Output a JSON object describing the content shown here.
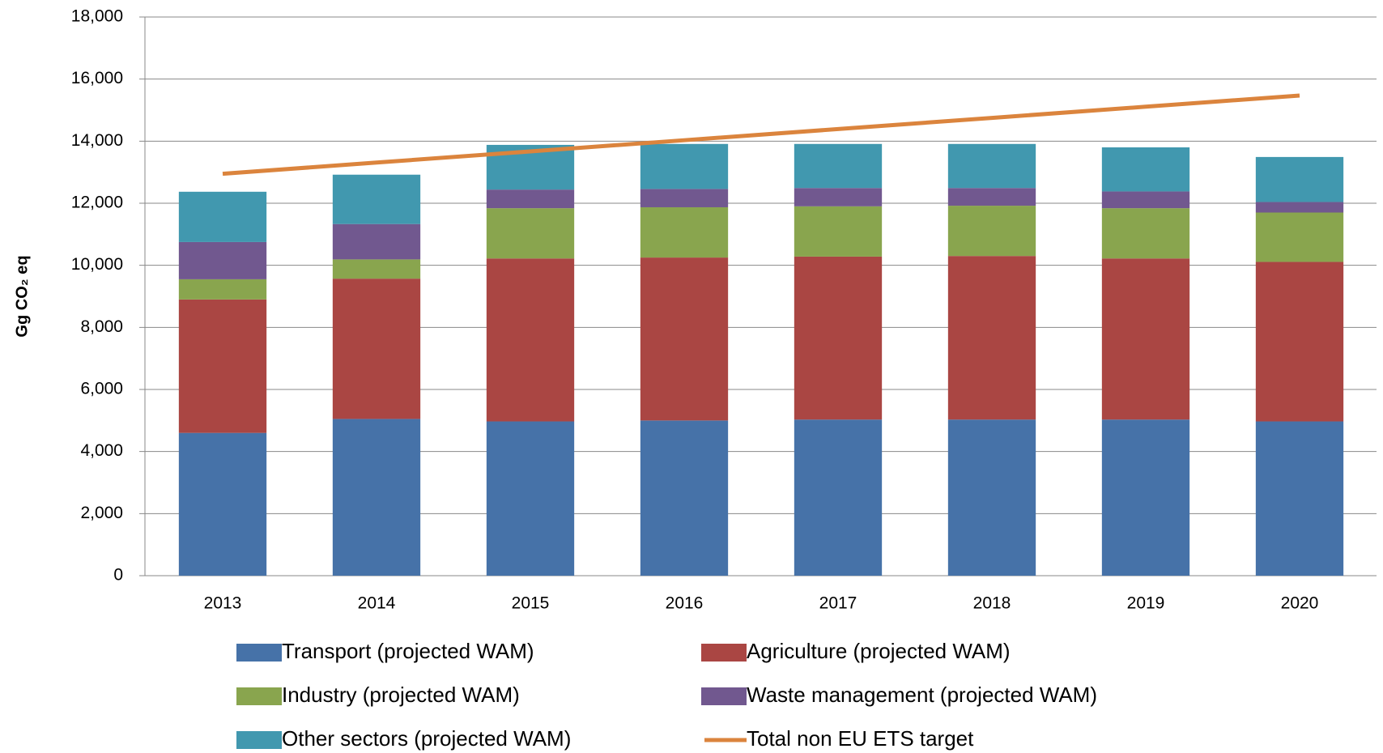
{
  "chart_data": {
    "type": "stacked-bar-line",
    "y_axis_label": "Gg CO₂ eq",
    "categories": [
      "2013",
      "2014",
      "2015",
      "2016",
      "2017",
      "2018",
      "2019",
      "2020"
    ],
    "series": [
      {
        "name": "Transport (projected WAM)",
        "color": "#4672a8",
        "values": [
          4600,
          5050,
          4970,
          5000,
          5030,
          5030,
          5030,
          4970
        ]
      },
      {
        "name": "Agriculture (projected WAM)",
        "color": "#aa4643",
        "values": [
          4300,
          4520,
          5250,
          5250,
          5250,
          5270,
          5190,
          5140
        ]
      },
      {
        "name": "Industry (projected WAM)",
        "color": "#89a54e",
        "values": [
          650,
          620,
          1620,
          1620,
          1620,
          1620,
          1620,
          1590
        ]
      },
      {
        "name": "Waste management (projected WAM)",
        "color": "#71588f",
        "values": [
          1200,
          1140,
          600,
          590,
          590,
          570,
          540,
          340
        ]
      },
      {
        "name": "Other sectors (projected WAM)",
        "color": "#4198af",
        "values": [
          1620,
          1590,
          1440,
          1450,
          1420,
          1420,
          1420,
          1450
        ]
      },
      {
        "name": "Total non EU ETS target",
        "color": "#db843d",
        "kind": "line",
        "values": [
          12950,
          13310,
          13670,
          14030,
          14390,
          14750,
          15110,
          15470
        ]
      }
    ],
    "ylim": [
      0,
      18000
    ],
    "yticks": [
      0,
      {
        "value": 2000,
        "label": "2,000"
      },
      {
        "value": 4000,
        "label": "4,000"
      },
      {
        "value": 6000,
        "label": "6,000"
      },
      {
        "value": 8000,
        "label": "8,000"
      },
      {
        "value": 10000,
        "label": "10,000"
      },
      {
        "value": 12000,
        "label": "12,000"
      },
      {
        "value": 14000,
        "label": "14,000"
      },
      {
        "value": 16000,
        "label": "16,000"
      },
      {
        "value": 18000,
        "label": "18,000"
      }
    ],
    "grid": true
  }
}
